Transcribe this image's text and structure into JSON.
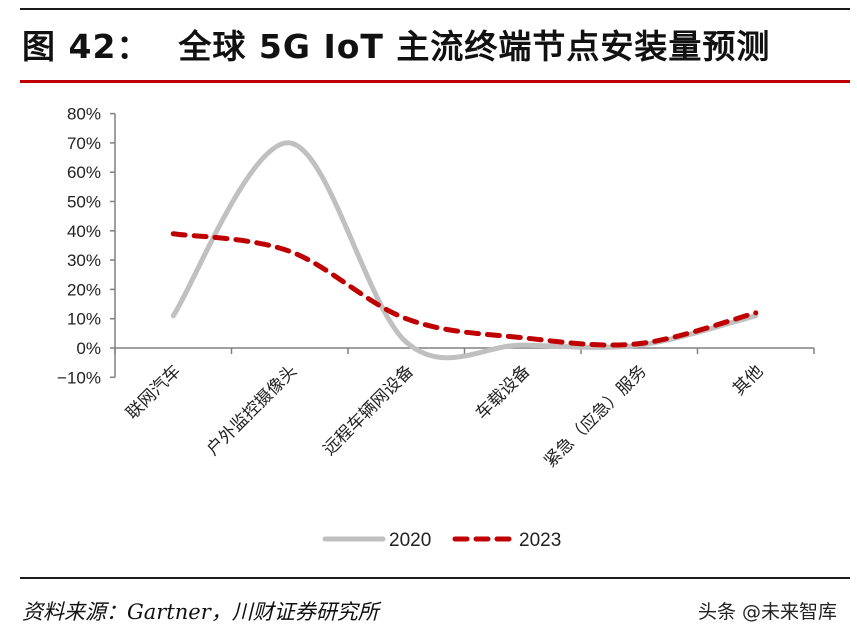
{
  "header": {
    "figure_label": "图 42：",
    "title": "全球 5G IoT 主流终端节点安装量预测"
  },
  "footer": {
    "source": "资料来源：Gartner，川财证券研究所",
    "watermark": "头条 @未来智库"
  },
  "colors": {
    "series_2020": "#c0c0c0",
    "series_2023": "#c00000",
    "axis": "#808080",
    "rule_red": "#c00000"
  },
  "chart_data": {
    "type": "line",
    "title": "全球 5G IoT 主流终端节点安装量预测",
    "xlabel": "",
    "ylabel": "",
    "categories": [
      "联网汽车",
      "户外监控摄像头",
      "远程车辆网设备",
      "车载设备",
      "紧急（应急）服务",
      "其他"
    ],
    "series": [
      {
        "name": "2020",
        "values": [
          11,
          70,
          2,
          1,
          1,
          11
        ],
        "style": "solid",
        "color": "#c0c0c0"
      },
      {
        "name": "2023",
        "values": [
          39,
          33,
          10,
          3.5,
          1.5,
          12
        ],
        "style": "dashed",
        "color": "#c00000"
      }
    ],
    "ylim": [
      -10,
      80
    ],
    "yticks": [
      "-10%",
      "0%",
      "10%",
      "20%",
      "30%",
      "40%",
      "50%",
      "60%",
      "70%",
      "80%"
    ],
    "smoothed": true,
    "grid": false,
    "legend_position": "bottom"
  }
}
